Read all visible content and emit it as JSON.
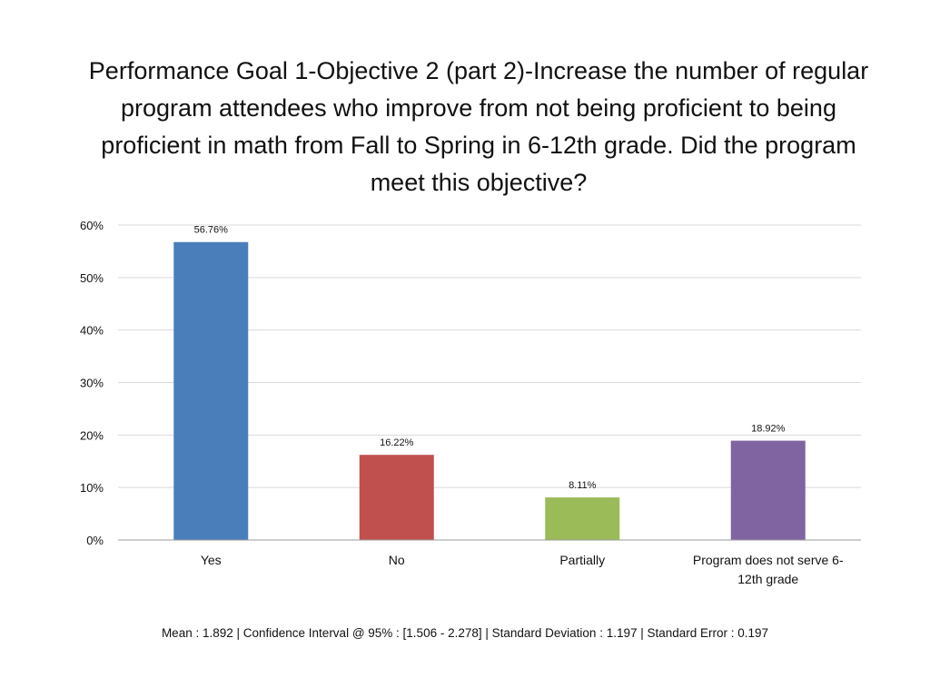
{
  "chart_data": {
    "type": "bar",
    "title": "Performance Goal 1-Objective 2 (part 2)-Increase the number of regular program attendees who improve from not being proficient to being proficient in math from Fall to Spring in 6-12th grade. Did the program meet this objective?",
    "categories": [
      "Yes",
      "No",
      "Partially",
      "Program does not serve 6-12th grade"
    ],
    "values": [
      56.76,
      16.22,
      8.11,
      18.92
    ],
    "value_labels": [
      "56.76%",
      "16.22%",
      "8.11%",
      "18.92%"
    ],
    "bar_colors": [
      "#4a7ebb",
      "#c0504d",
      "#9bbb59",
      "#8064a2"
    ],
    "ylim": [
      0,
      60
    ],
    "y_ticks": [
      0,
      10,
      20,
      30,
      40,
      50,
      60
    ],
    "y_tick_labels": [
      "0%",
      "10%",
      "20%",
      "30%",
      "40%",
      "50%",
      "60%"
    ],
    "xlabel": "",
    "ylabel": "",
    "grid": true,
    "legend": false
  },
  "footer": {
    "stats": "Mean : 1.892  | Confidence Interval @ 95% : [1.506 - 2.278]  |  Standard Deviation : 1.197  |  Standard Error : 0.197"
  }
}
